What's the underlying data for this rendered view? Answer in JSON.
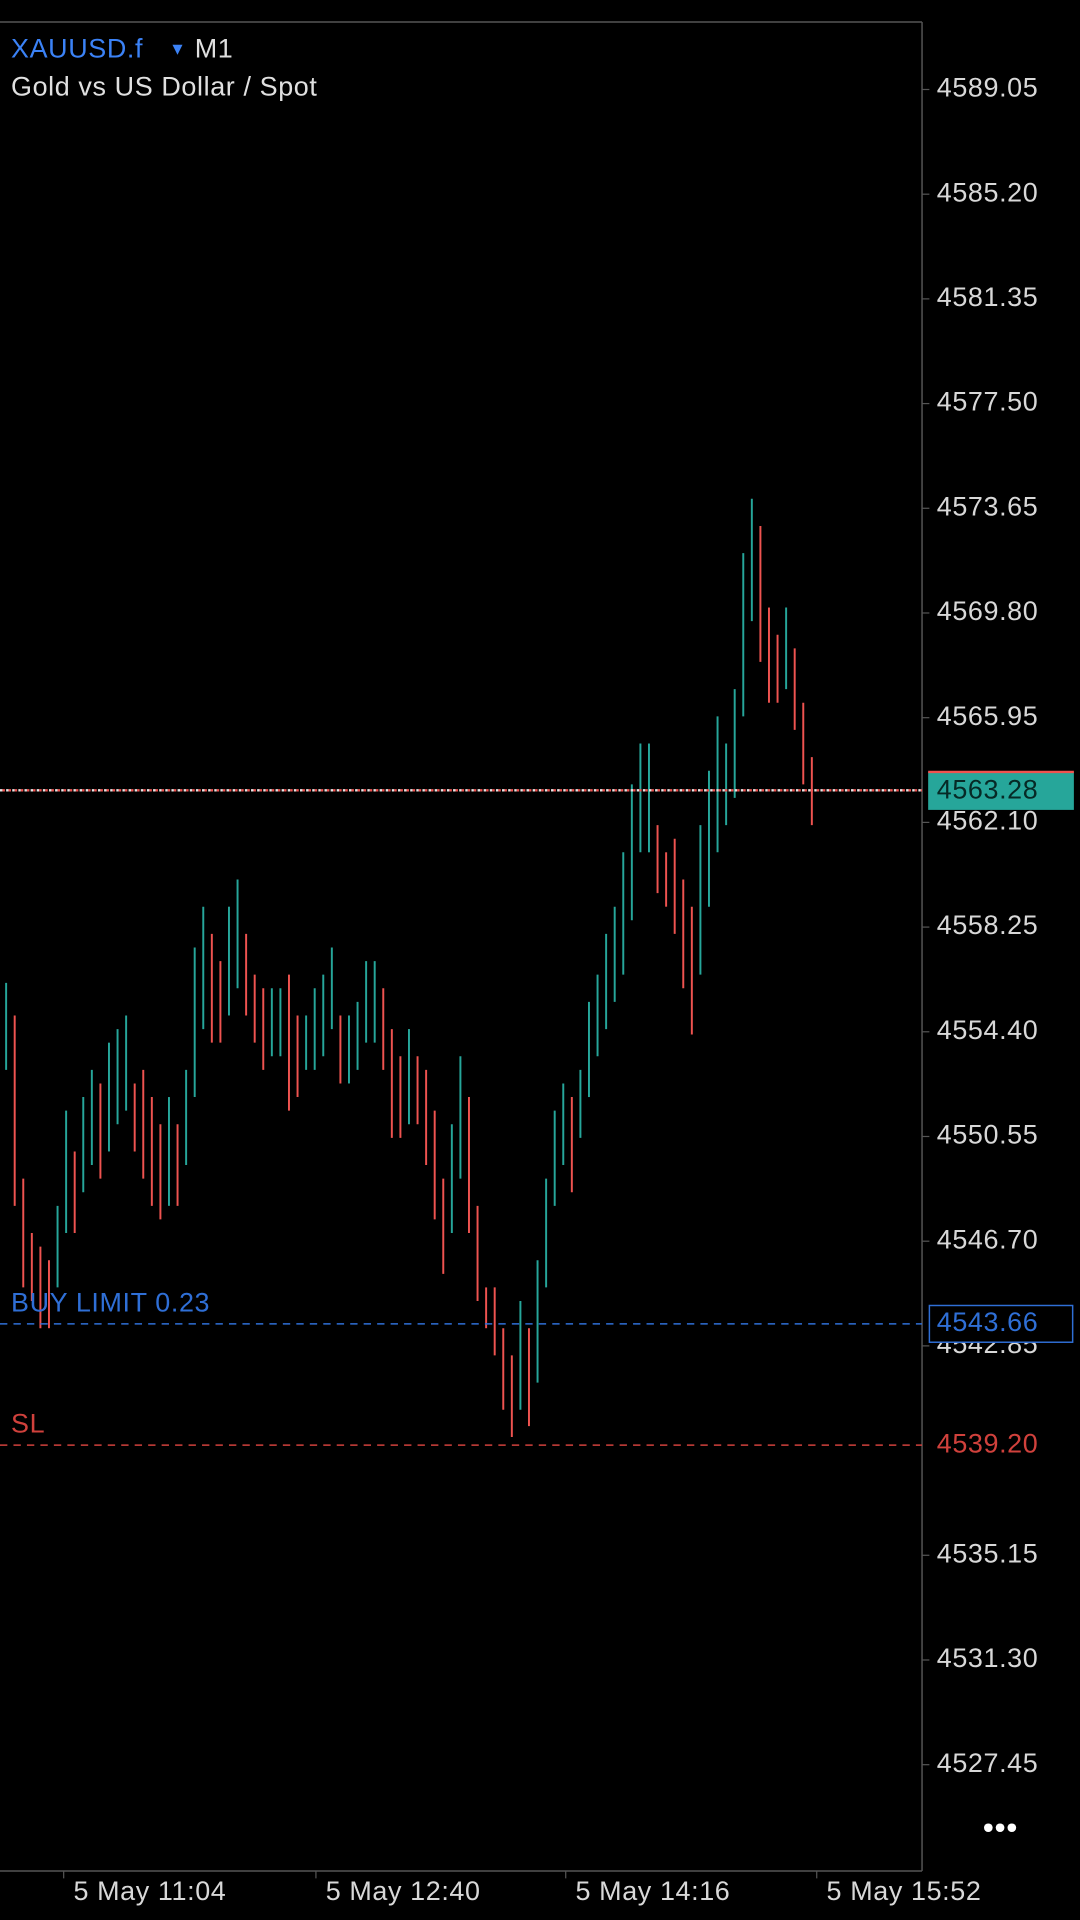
{
  "chart_data": {
    "type": "ohlc",
    "symbol": "XAUUSD.f",
    "timeframe": "M1",
    "subtitle": "Gold vs US Dollar / Spot",
    "high": [
      4556.2,
      4555,
      4549,
      4547,
      4546.5,
      4546,
      4548,
      4551.5,
      4550,
      4552,
      4553,
      4552.5,
      4554,
      4554.5,
      4555,
      4552.5,
      4553,
      4552,
      4551,
      4552,
      4551,
      4553,
      4557.5,
      4559,
      4558,
      4557,
      4559,
      4560,
      4558,
      4556.5,
      4556,
      4556,
      4556,
      4556.5,
      4555,
      4555,
      4556,
      4556.5,
      4557.5,
      4555,
      4555,
      4555.5,
      4557,
      4557,
      4556,
      4554.5,
      4553.5,
      4554.5,
      4553.5,
      4553,
      4551.5,
      4549,
      4551,
      4553.5,
      4552,
      4548,
      4545,
      4545,
      4543.5,
      4542.5,
      4544.5,
      4543.5,
      4546,
      4549,
      4551.5,
      4552.5,
      4552,
      4553,
      4555.5,
      4556.5,
      4558,
      4559,
      4561,
      4563.5,
      4565,
      4565,
      4562,
      4561,
      4561.5,
      4560,
      4559,
      4562,
      4564,
      4566,
      4565,
      4567,
      4572,
      4574,
      4573,
      4570,
      4569,
      4570,
      4568.5,
      4566.5,
      4564.5
    ],
    "low": [
      4553,
      4548,
      4545,
      4544.5,
      4543.5,
      4543.5,
      4545,
      4547,
      4547,
      4548.5,
      4549.5,
      4549,
      4550,
      4551,
      4551.5,
      4550,
      4549,
      4548,
      4547.5,
      4548,
      4548,
      4549.5,
      4552,
      4554.5,
      4554,
      4554,
      4555,
      4556,
      4555,
      4554,
      4553,
      4553.5,
      4553.5,
      4551.5,
      4552,
      4553,
      4553,
      4553.5,
      4554.5,
      4552.5,
      4552.5,
      4553,
      4554,
      4554,
      4553,
      4550.5,
      4550.5,
      4551,
      4551,
      4549.5,
      4547.5,
      4545.5,
      4547,
      4549,
      4547,
      4544.5,
      4543.5,
      4542.5,
      4540.5,
      4539.5,
      4540.5,
      4539.9,
      4541.5,
      4545,
      4548,
      4549.5,
      4548.5,
      4550.5,
      4552,
      4553.5,
      4554.5,
      4555.5,
      4556.5,
      4558.5,
      4561,
      4561,
      4559.5,
      4559,
      4558,
      4556,
      4554.3,
      4556.5,
      4559,
      4561,
      4562,
      4563,
      4566,
      4569.5,
      4568,
      4566.5,
      4566.5,
      4567,
      4565.5,
      4563.5,
      4562
    ],
    "up_color": "#26a69a",
    "down_color": "#ef5350",
    "ylim": [
      4523.54,
      4591.53
    ],
    "yticks": [
      4589.05,
      {
        "value": 4585.2,
        "label": "4585.20"
      },
      4581.35,
      {
        "value": 4577.5,
        "label": "4577.50"
      },
      4573.65,
      {
        "value": 4569.8,
        "label": "4569.80"
      },
      4565.95,
      {
        "value": 4562.1,
        "label": "4562.10"
      },
      4558.25,
      {
        "value": 4554.4,
        "label": "4554.40"
      },
      4550.55,
      {
        "value": 4546.7,
        "label": "4546.70"
      },
      4542.85,
      4535.15,
      {
        "value": 4531.3,
        "label": "4531.30"
      },
      4527.45
    ],
    "x_labels": [
      "5 May 11:04",
      "5 May 12:40",
      "5 May 14:16",
      "5 May 15:52"
    ],
    "current_price": {
      "value": 4563.28,
      "color": "#26a69a"
    },
    "levels": [
      {
        "name": "BUY LIMIT 0.23",
        "value": 4543.66,
        "color": "#2f6fd6"
      },
      {
        "name": "SL",
        "value": 4539.2,
        "label": "4539.20",
        "color": "#d0413c"
      }
    ]
  }
}
